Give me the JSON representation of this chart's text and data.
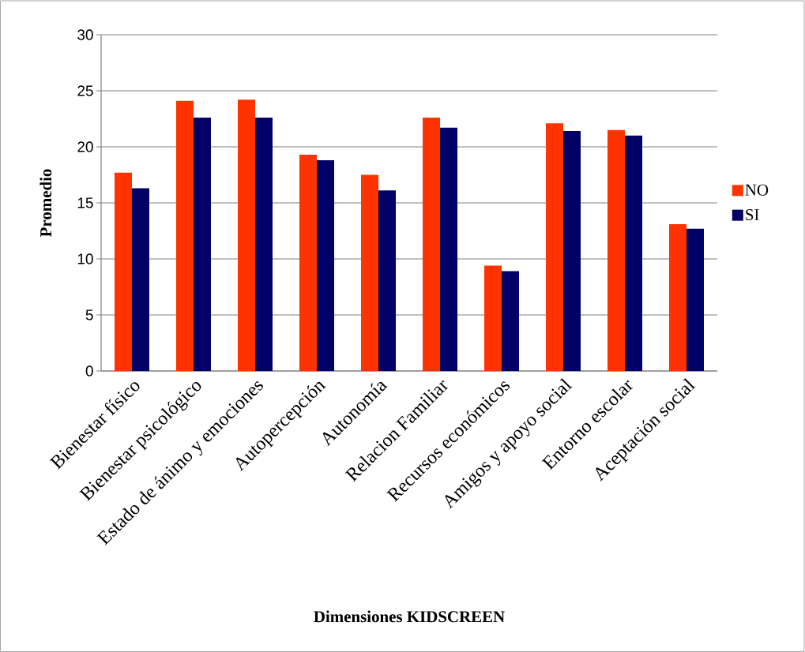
{
  "chart_data": {
    "type": "bar",
    "xlabel": "Dimensiones KIDSCREEN",
    "ylabel": "Promedio",
    "categories": [
      "Bienestar físico",
      "Bienestar psicológico",
      "Estado de ánimo y emociones",
      "Autopercepción",
      "Autonomía",
      "Relacion Familiar",
      "Recursos económicos",
      "Amigos y apoyo social",
      "Entorno escolar",
      "Aceptación social"
    ],
    "series": [
      {
        "name": "NO",
        "color": "#ff3300",
        "values": [
          17.7,
          24.1,
          24.2,
          19.3,
          17.5,
          22.6,
          9.4,
          22.1,
          21.5,
          13.1
        ]
      },
      {
        "name": "SI",
        "color": "#000066",
        "values": [
          16.3,
          22.6,
          22.6,
          18.8,
          16.1,
          21.7,
          8.9,
          21.4,
          21.0,
          12.7
        ]
      }
    ],
    "ylim": [
      0,
      30
    ],
    "yticks": [
      0,
      5,
      10,
      15,
      20,
      25,
      30
    ],
    "grid": "y",
    "legend": "right"
  }
}
